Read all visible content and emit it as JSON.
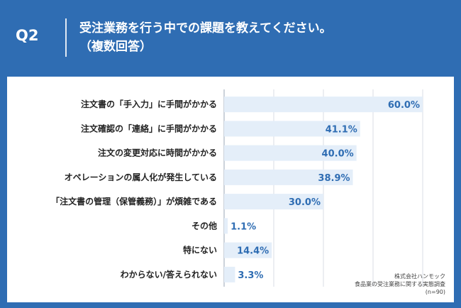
{
  "header": {
    "question_label": "Q2",
    "title_line1": "受注業務を行う中での課題を教えてください。",
    "title_line2": "（複数回答）"
  },
  "source": {
    "line1": "株式会社ハンモック",
    "line2": "食品業の受注業務に関する実態調査",
    "line3": "(n=90)"
  },
  "colors": {
    "background": "#2f6db3",
    "bar": "#e4eef9",
    "value_text": "#2f6db3",
    "grid": "#d8dde6"
  },
  "chart_data": {
    "type": "bar",
    "orientation": "horizontal",
    "categories": [
      "注文書の「手入力」に手間がかかる",
      "注文確認の「連絡」に手間がかかる",
      "注文の変更対応に時間がかかる",
      "オペレーションの属人化が発生している",
      "「注文書の管理（保管義務）」が煩雑である",
      "その他",
      "特にない",
      "わからない/答えられない"
    ],
    "values": [
      60.0,
      41.1,
      40.0,
      38.9,
      30.0,
      1.1,
      14.4,
      3.3
    ],
    "value_labels": [
      "60.0%",
      "41.1%",
      "40.0%",
      "38.9%",
      "30.0%",
      "1.1%",
      "14.4%",
      "3.3%"
    ],
    "xlim": [
      0,
      60
    ],
    "grid": true,
    "gridlines_at": [
      0,
      15,
      30,
      45,
      60
    ]
  }
}
